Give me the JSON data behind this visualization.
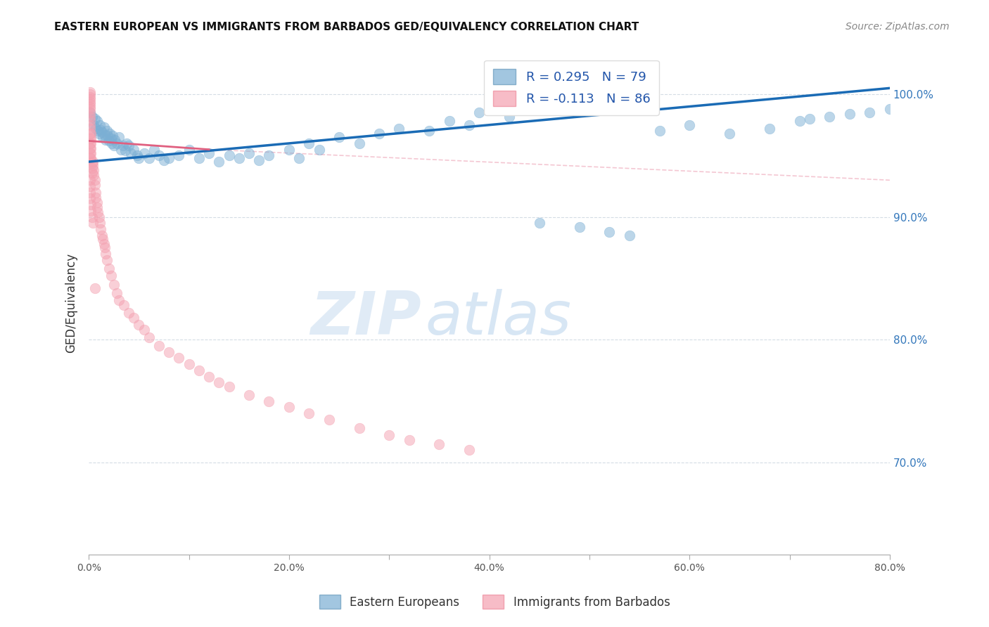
{
  "title": "EASTERN EUROPEAN VS IMMIGRANTS FROM BARBADOS GED/EQUIVALENCY CORRELATION CHART",
  "source": "Source: ZipAtlas.com",
  "ylabel": "GED/Equivalency",
  "xmin": 0.0,
  "xmax": 0.8,
  "ymin": 0.625,
  "ymax": 1.035,
  "xticks": [
    0.0,
    0.1,
    0.2,
    0.3,
    0.4,
    0.5,
    0.6,
    0.7,
    0.8
  ],
  "xticklabels": [
    "0.0%",
    "",
    "20.0%",
    "",
    "40.0%",
    "",
    "60.0%",
    "",
    "80.0%"
  ],
  "yticks": [
    0.7,
    0.8,
    0.9,
    1.0
  ],
  "yticklabels": [
    "70.0%",
    "80.0%",
    "90.0%",
    "100.0%"
  ],
  "legend_label1": "Eastern Europeans",
  "legend_label2": "Immigrants from Barbados",
  "r1": 0.295,
  "n1": 79,
  "r2": -0.113,
  "n2": 86,
  "blue_color": "#7BAFD4",
  "pink_color": "#F4A0B0",
  "blue_line_color": "#1A6BB5",
  "pink_line_color": "#E06080",
  "watermark_zip": "ZIP",
  "watermark_atlas": "atlas",
  "blue_scatter_x": [
    0.001,
    0.003,
    0.005,
    0.006,
    0.007,
    0.008,
    0.009,
    0.01,
    0.011,
    0.012,
    0.013,
    0.014,
    0.015,
    0.016,
    0.017,
    0.018,
    0.019,
    0.02,
    0.021,
    0.022,
    0.023,
    0.024,
    0.025,
    0.026,
    0.028,
    0.03,
    0.032,
    0.034,
    0.036,
    0.038,
    0.04,
    0.042,
    0.045,
    0.048,
    0.05,
    0.055,
    0.06,
    0.065,
    0.07,
    0.075,
    0.08,
    0.09,
    0.1,
    0.11,
    0.12,
    0.13,
    0.14,
    0.15,
    0.16,
    0.17,
    0.18,
    0.2,
    0.21,
    0.22,
    0.23,
    0.25,
    0.27,
    0.29,
    0.31,
    0.34,
    0.36,
    0.38,
    0.39,
    0.4,
    0.42,
    0.45,
    0.49,
    0.52,
    0.54,
    0.57,
    0.6,
    0.64,
    0.68,
    0.71,
    0.72,
    0.74,
    0.76,
    0.78,
    0.8
  ],
  "blue_scatter_y": [
    0.985,
    0.982,
    0.975,
    0.98,
    0.972,
    0.978,
    0.97,
    0.968,
    0.975,
    0.971,
    0.969,
    0.965,
    0.973,
    0.967,
    0.963,
    0.97,
    0.966,
    0.962,
    0.968,
    0.964,
    0.96,
    0.966,
    0.958,
    0.963,
    0.96,
    0.965,
    0.955,
    0.958,
    0.954,
    0.96,
    0.958,
    0.952,
    0.955,
    0.95,
    0.948,
    0.952,
    0.948,
    0.955,
    0.95,
    0.946,
    0.948,
    0.95,
    0.955,
    0.948,
    0.952,
    0.945,
    0.95,
    0.948,
    0.952,
    0.946,
    0.95,
    0.955,
    0.948,
    0.96,
    0.955,
    0.965,
    0.96,
    0.968,
    0.972,
    0.97,
    0.978,
    0.975,
    0.985,
    0.988,
    0.982,
    0.895,
    0.892,
    0.888,
    0.885,
    0.97,
    0.975,
    0.968,
    0.972,
    0.978,
    0.98,
    0.982,
    0.984,
    0.985,
    0.988
  ],
  "pink_scatter_x": [
    0.001,
    0.001,
    0.001,
    0.001,
    0.001,
    0.001,
    0.001,
    0.001,
    0.001,
    0.001,
    0.001,
    0.001,
    0.001,
    0.001,
    0.001,
    0.001,
    0.001,
    0.001,
    0.001,
    0.002,
    0.002,
    0.002,
    0.002,
    0.002,
    0.002,
    0.003,
    0.003,
    0.003,
    0.004,
    0.004,
    0.005,
    0.005,
    0.006,
    0.006,
    0.007,
    0.007,
    0.008,
    0.008,
    0.009,
    0.01,
    0.011,
    0.012,
    0.013,
    0.014,
    0.015,
    0.016,
    0.017,
    0.018,
    0.02,
    0.022,
    0.025,
    0.028,
    0.03,
    0.035,
    0.04,
    0.045,
    0.05,
    0.055,
    0.06,
    0.07,
    0.08,
    0.09,
    0.1,
    0.11,
    0.12,
    0.13,
    0.14,
    0.16,
    0.18,
    0.2,
    0.22,
    0.24,
    0.27,
    0.3,
    0.32,
    0.35,
    0.38,
    0.001,
    0.001,
    0.001,
    0.001,
    0.002,
    0.002,
    0.003,
    0.004,
    0.006
  ],
  "pink_scatter_y": [
    1.002,
    1.0,
    0.998,
    0.996,
    0.994,
    0.992,
    0.99,
    0.988,
    0.985,
    0.982,
    0.979,
    0.975,
    0.972,
    0.968,
    0.964,
    0.96,
    0.956,
    0.952,
    0.948,
    0.968,
    0.964,
    0.96,
    0.956,
    0.952,
    0.948,
    0.944,
    0.94,
    0.936,
    0.945,
    0.942,
    0.938,
    0.934,
    0.93,
    0.926,
    0.92,
    0.916,
    0.912,
    0.908,
    0.904,
    0.9,
    0.895,
    0.89,
    0.885,
    0.882,
    0.878,
    0.875,
    0.87,
    0.865,
    0.858,
    0.852,
    0.845,
    0.838,
    0.832,
    0.828,
    0.822,
    0.818,
    0.812,
    0.808,
    0.802,
    0.795,
    0.79,
    0.785,
    0.78,
    0.775,
    0.77,
    0.765,
    0.762,
    0.755,
    0.75,
    0.745,
    0.74,
    0.735,
    0.728,
    0.722,
    0.718,
    0.715,
    0.71,
    0.93,
    0.925,
    0.92,
    0.915,
    0.91,
    0.905,
    0.9,
    0.895,
    0.842
  ]
}
